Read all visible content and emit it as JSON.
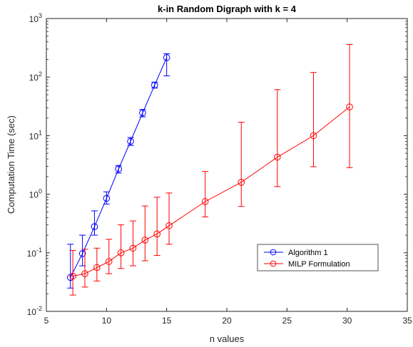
{
  "chart_data": {
    "type": "line",
    "title": "k-in Random Digraph with k =   4",
    "xlabel": "n values",
    "ylabel": "Computation Time (sec)",
    "xlim": [
      5,
      35
    ],
    "ylim": [
      0.01,
      1000
    ],
    "yscale": "log",
    "x_ticks": [
      "5",
      "10",
      "15",
      "20",
      "25",
      "30",
      "35"
    ],
    "y_ticks": [
      {
        "base": "10",
        "exp": "-2"
      },
      {
        "base": "10",
        "exp": "-1"
      },
      {
        "base": "10",
        "exp": "0"
      },
      {
        "base": "10",
        "exp": "1"
      },
      {
        "base": "10",
        "exp": "2"
      },
      {
        "base": "10",
        "exp": "3"
      }
    ],
    "grid": false,
    "legend_position": "lower-right",
    "series": [
      {
        "name": "Algorithm 1",
        "color": "#0000ff",
        "marker": "circle",
        "x": [
          7,
          8,
          9,
          10,
          11,
          12,
          13,
          14,
          15
        ],
        "y": [
          0.038,
          0.097,
          0.28,
          0.85,
          2.7,
          8,
          24.5,
          73,
          215
        ],
        "y_low": [
          0.025,
          0.06,
          0.2,
          0.68,
          2.3,
          6.8,
          21,
          65,
          105
        ],
        "y_high": [
          0.14,
          0.2,
          0.52,
          1.1,
          3.1,
          9.3,
          28,
          82,
          250
        ]
      },
      {
        "name": "MILP Formulation",
        "color": "#ff0000",
        "marker": "circle",
        "x": [
          7.2,
          8.2,
          9.2,
          10.2,
          11.2,
          12.2,
          13.2,
          14.2,
          15.2,
          18.2,
          21.2,
          24.2,
          27.2,
          30.2
        ],
        "y": [
          0.04,
          0.044,
          0.056,
          0.071,
          0.1,
          0.12,
          0.165,
          0.21,
          0.29,
          0.75,
          1.6,
          4.3,
          10,
          31
        ],
        "y_low": [
          0.019,
          0.026,
          0.033,
          0.044,
          0.054,
          0.06,
          0.073,
          0.09,
          0.14,
          0.41,
          0.62,
          1.35,
          2.95,
          2.85
        ],
        "y_high": [
          0.11,
          0.115,
          0.12,
          0.17,
          0.3,
          0.35,
          0.63,
          0.89,
          1.05,
          2.45,
          17,
          61,
          120,
          360
        ]
      }
    ]
  }
}
